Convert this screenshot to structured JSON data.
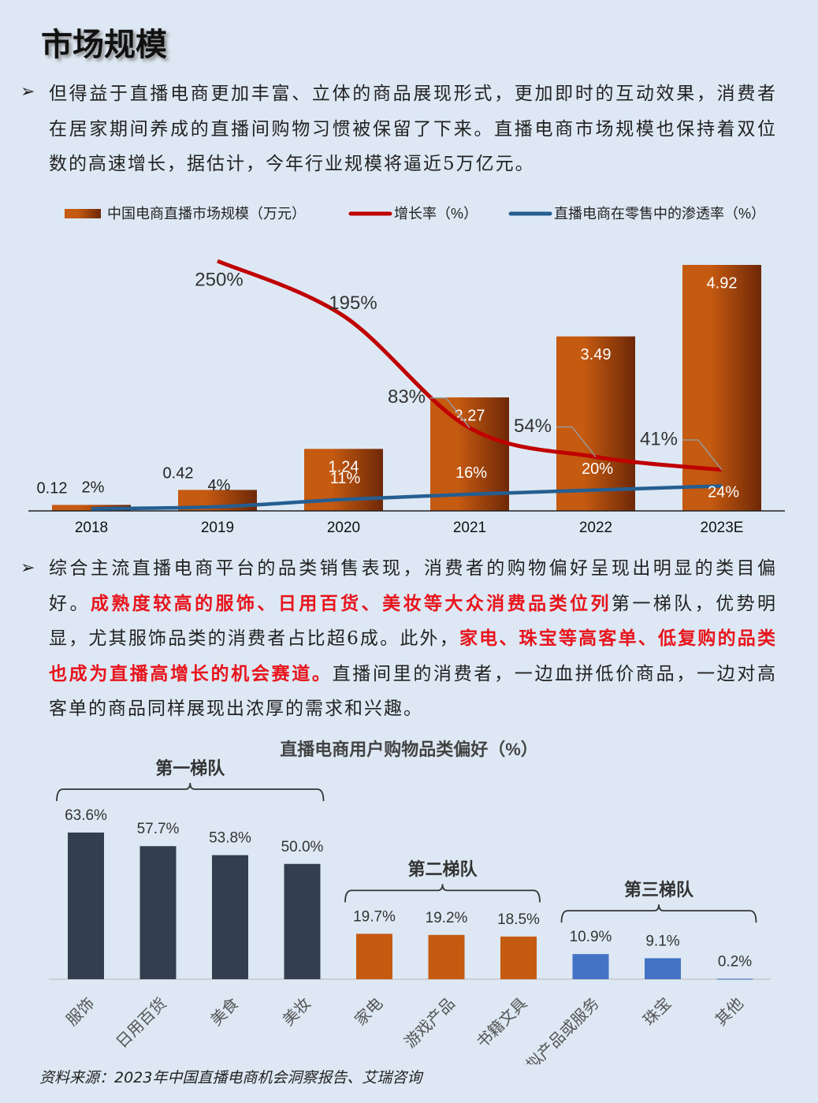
{
  "document": {
    "title": "市场规模",
    "paragraphs": [
      [
        {
          "text": "但得益于直播电商更加丰富、立体的商品展现形式，更加即时的互动效果，消费者在居家期间养成的直播间购物习惯被保留了下来。直播电商市场规模也保持着双位数的高速增长，据估计，今年行业规模将逼近5万亿元。"
        }
      ],
      [
        {
          "text": "综合主流直播电商平台的品类销售表现，消费者的购物偏好呈现出明显的类目偏好。"
        },
        {
          "text": "成熟度较高的服饰、日用百货、美妆等大众消费品类位列",
          "color": "#e8141c"
        },
        {
          "text": "第一梯队，优势明显，尤其服饰品类的消费者占比超6成。此外，"
        },
        {
          "text": "家电、珠宝等高客单、低复购的品类也成为直播高增长的机会赛道。",
          "color": "#e8141c"
        },
        {
          "text": "直播间里的消费者，一边血拼低价商品，一边对高客单的商品同样展现出浓厚的需求和兴趣。"
        }
      ]
    ],
    "source": "资料来源：2023年中国直播电商机会洞察报告、艾瑞咨询"
  },
  "chart_data": [
    {
      "type": "combo",
      "categories": [
        "2018",
        "2019",
        "2020",
        "2021",
        "2022",
        "2023E"
      ],
      "series": [
        {
          "name": "中国电商直播市场规模（万元）",
          "type": "bar",
          "color": "#c55a11",
          "values": [
            0.12,
            0.42,
            1.24,
            2.27,
            3.49,
            4.92
          ]
        },
        {
          "name": "增长率（%）",
          "type": "line",
          "color": "#c00000",
          "values": [
            null,
            250,
            195,
            83,
            54,
            41
          ],
          "value_labels": [
            null,
            "250%",
            "195%",
            "83%",
            "54%",
            "41%"
          ]
        },
        {
          "name": "直播电商在零售中的渗透率（%）",
          "type": "line",
          "color": "#255e91",
          "values": [
            2,
            4,
            11,
            16,
            20,
            24
          ],
          "value_labels": [
            "2%",
            "4%",
            "11%",
            "16%",
            "20%",
            "24%"
          ]
        }
      ]
    },
    {
      "type": "bar",
      "title": "直播电商用户购物品类偏好（%）",
      "categories": [
        "服饰",
        "日用百货",
        "美食",
        "美妆",
        "家电",
        "游戏产品",
        "书籍文具",
        "虚拟产品或服务",
        "珠宝",
        "其他"
      ],
      "values": [
        63.6,
        57.7,
        53.8,
        50.0,
        19.7,
        19.2,
        18.5,
        10.9,
        9.1,
        0.2
      ],
      "value_labels": [
        "63.6%",
        "57.7%",
        "53.8%",
        "50.0%",
        "19.7%",
        "19.2%",
        "18.5%",
        "10.9%",
        "9.1%",
        "0.2%"
      ],
      "groups": [
        {
          "label": "第一梯队",
          "color": "#333f50",
          "size": 4
        },
        {
          "label": "第二梯队",
          "color": "#c55a11",
          "size": 3
        },
        {
          "label": "第三梯队",
          "color": "#4472c4",
          "size": 3
        }
      ]
    }
  ]
}
